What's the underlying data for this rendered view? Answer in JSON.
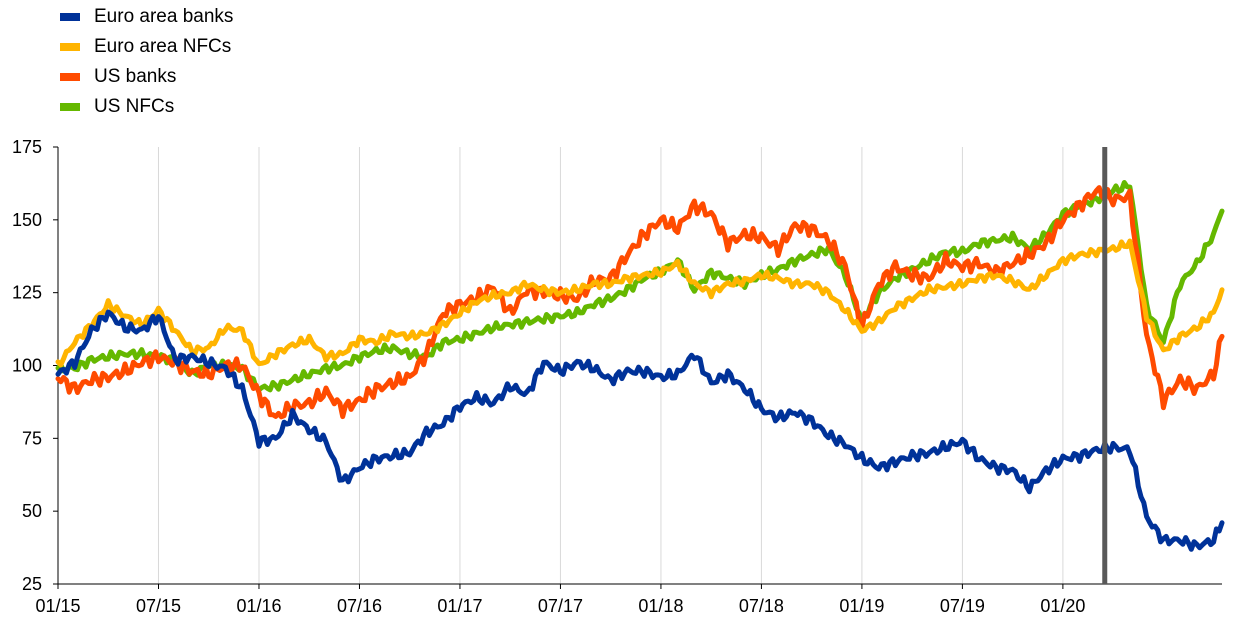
{
  "chart_data": {
    "type": "line",
    "title": "",
    "xlabel": "",
    "ylabel": "",
    "ylim": [
      25,
      175
    ],
    "y_ticks": [
      "175",
      "150",
      "125",
      "100",
      "75",
      "50",
      "25"
    ],
    "x_ticks": [
      "01/15",
      "07/15",
      "01/16",
      "07/16",
      "01/17",
      "07/17",
      "01/18",
      "07/18",
      "01/19",
      "07/19",
      "01/20"
    ],
    "x_unit": "month",
    "x_start": "01/15",
    "x_end": "07/20",
    "grid": "vertical",
    "legend_position": "top-left",
    "vertical_marker": "03/20",
    "series": [
      {
        "name": "Euro area banks",
        "color": "#003299",
        "points": [
          [
            0,
            97
          ],
          [
            1,
            101
          ],
          [
            2,
            112
          ],
          [
            3,
            118
          ],
          [
            4,
            113
          ],
          [
            5,
            112
          ],
          [
            6,
            117
          ],
          [
            7,
            102
          ],
          [
            8,
            103
          ],
          [
            9,
            101
          ],
          [
            10,
            99
          ],
          [
            11,
            92
          ],
          [
            12,
            74
          ],
          [
            13,
            75
          ],
          [
            14,
            83
          ],
          [
            15,
            78
          ],
          [
            16,
            74
          ],
          [
            17,
            60
          ],
          [
            18,
            65
          ],
          [
            19,
            68
          ],
          [
            20,
            69
          ],
          [
            21,
            70
          ],
          [
            22,
            77
          ],
          [
            23,
            80
          ],
          [
            24,
            86
          ],
          [
            25,
            89
          ],
          [
            26,
            87
          ],
          [
            27,
            93
          ],
          [
            28,
            90
          ],
          [
            29,
            101
          ],
          [
            30,
            98
          ],
          [
            31,
            101
          ],
          [
            32,
            99
          ],
          [
            33,
            95
          ],
          [
            34,
            98
          ],
          [
            35,
            98
          ],
          [
            36,
            96
          ],
          [
            37,
            97
          ],
          [
            38,
            104
          ],
          [
            39,
            94
          ],
          [
            40,
            97
          ],
          [
            41,
            92
          ],
          [
            42,
            85
          ],
          [
            43,
            82
          ],
          [
            44,
            84
          ],
          [
            45,
            81
          ],
          [
            46,
            76
          ],
          [
            47,
            73
          ],
          [
            48,
            68
          ],
          [
            49,
            65
          ],
          [
            50,
            67
          ],
          [
            51,
            69
          ],
          [
            52,
            70
          ],
          [
            53,
            72
          ],
          [
            54,
            74
          ],
          [
            55,
            68
          ],
          [
            56,
            65
          ],
          [
            57,
            64
          ],
          [
            58,
            58
          ],
          [
            59,
            64
          ],
          [
            60,
            68
          ],
          [
            61,
            69
          ],
          [
            62,
            71
          ],
          [
            63,
            72
          ],
          [
            64,
            71
          ],
          [
            65,
            48
          ],
          [
            66,
            40
          ],
          [
            67,
            40
          ],
          [
            68,
            38
          ],
          [
            69,
            40
          ],
          [
            69.5,
            46
          ]
        ]
      },
      {
        "name": "Euro area NFCs",
        "color": "#ffb400",
        "points": [
          [
            0,
            100
          ],
          [
            1,
            108
          ],
          [
            2,
            114
          ],
          [
            3,
            121
          ],
          [
            4,
            117
          ],
          [
            5,
            114
          ],
          [
            6,
            119
          ],
          [
            7,
            112
          ],
          [
            8,
            105
          ],
          [
            9,
            106
          ],
          [
            10,
            113
          ],
          [
            11,
            112
          ],
          [
            12,
            100
          ],
          [
            13,
            104
          ],
          [
            14,
            107
          ],
          [
            15,
            109
          ],
          [
            16,
            103
          ],
          [
            17,
            104
          ],
          [
            18,
            109
          ],
          [
            19,
            108
          ],
          [
            20,
            111
          ],
          [
            21,
            110
          ],
          [
            22,
            111
          ],
          [
            23,
            114
          ],
          [
            24,
            118
          ],
          [
            25,
            122
          ],
          [
            26,
            124
          ],
          [
            27,
            125
          ],
          [
            28,
            128
          ],
          [
            29,
            126
          ],
          [
            30,
            125
          ],
          [
            31,
            126
          ],
          [
            32,
            128
          ],
          [
            33,
            128
          ],
          [
            34,
            130
          ],
          [
            35,
            131
          ],
          [
            36,
            132
          ],
          [
            37,
            135
          ],
          [
            38,
            128
          ],
          [
            39,
            125
          ],
          [
            40,
            128
          ],
          [
            41,
            129
          ],
          [
            42,
            131
          ],
          [
            43,
            130
          ],
          [
            44,
            128
          ],
          [
            45,
            128
          ],
          [
            46,
            125
          ],
          [
            47,
            119
          ],
          [
            48,
            112
          ],
          [
            49,
            115
          ],
          [
            50,
            120
          ],
          [
            51,
            123
          ],
          [
            52,
            126
          ],
          [
            53,
            127
          ],
          [
            54,
            128
          ],
          [
            55,
            130
          ],
          [
            56,
            131
          ],
          [
            57,
            129
          ],
          [
            58,
            126
          ],
          [
            59,
            131
          ],
          [
            60,
            136
          ],
          [
            61,
            138
          ],
          [
            62,
            139
          ],
          [
            63,
            140
          ],
          [
            64,
            142
          ],
          [
            65,
            117
          ],
          [
            66,
            105
          ],
          [
            67,
            110
          ],
          [
            68,
            113
          ],
          [
            69,
            118
          ],
          [
            69.5,
            126
          ]
        ]
      },
      {
        "name": "US banks",
        "color": "#ff4b00",
        "points": [
          [
            0,
            96
          ],
          [
            1,
            92
          ],
          [
            2,
            95
          ],
          [
            3,
            96
          ],
          [
            4,
            98
          ],
          [
            5,
            101
          ],
          [
            6,
            103
          ],
          [
            7,
            101
          ],
          [
            8,
            98
          ],
          [
            9,
            97
          ],
          [
            10,
            100
          ],
          [
            11,
            100
          ],
          [
            12,
            90
          ],
          [
            13,
            82
          ],
          [
            14,
            86
          ],
          [
            15,
            87
          ],
          [
            16,
            91
          ],
          [
            17,
            85
          ],
          [
            18,
            88
          ],
          [
            19,
            92
          ],
          [
            20,
            94
          ],
          [
            21,
            96
          ],
          [
            22,
            104
          ],
          [
            23,
            118
          ],
          [
            24,
            121
          ],
          [
            25,
            123
          ],
          [
            26,
            127
          ],
          [
            27,
            118
          ],
          [
            28,
            126
          ],
          [
            29,
            125
          ],
          [
            30,
            124
          ],
          [
            31,
            123
          ],
          [
            32,
            129
          ],
          [
            33,
            130
          ],
          [
            34,
            138
          ],
          [
            35,
            145
          ],
          [
            36,
            150
          ],
          [
            37,
            147
          ],
          [
            38,
            155
          ],
          [
            39,
            152
          ],
          [
            40,
            142
          ],
          [
            41,
            145
          ],
          [
            42,
            144
          ],
          [
            43,
            140
          ],
          [
            44,
            148
          ],
          [
            45,
            147
          ],
          [
            46,
            143
          ],
          [
            47,
            134
          ],
          [
            48,
            113
          ],
          [
            49,
            128
          ],
          [
            50,
            134
          ],
          [
            51,
            131
          ],
          [
            52,
            130
          ],
          [
            53,
            136
          ],
          [
            54,
            134
          ],
          [
            55,
            135
          ],
          [
            56,
            132
          ],
          [
            57,
            135
          ],
          [
            58,
            138
          ],
          [
            59,
            142
          ],
          [
            60,
            150
          ],
          [
            61,
            155
          ],
          [
            62,
            160
          ],
          [
            63,
            157
          ],
          [
            64,
            158
          ],
          [
            65,
            110
          ],
          [
            66,
            88
          ],
          [
            67,
            95
          ],
          [
            68,
            92
          ],
          [
            69,
            97
          ],
          [
            69.5,
            110
          ]
        ]
      },
      {
        "name": "US NFCs",
        "color": "#65b800",
        "points": [
          [
            0,
            99
          ],
          [
            1,
            99
          ],
          [
            2,
            102
          ],
          [
            3,
            103
          ],
          [
            4,
            104
          ],
          [
            5,
            104
          ],
          [
            6,
            103
          ],
          [
            7,
            102
          ],
          [
            8,
            97
          ],
          [
            9,
            100
          ],
          [
            10,
            100
          ],
          [
            11,
            99
          ],
          [
            12,
            92
          ],
          [
            13,
            93
          ],
          [
            14,
            95
          ],
          [
            15,
            97
          ],
          [
            16,
            99
          ],
          [
            17,
            100
          ],
          [
            18,
            103
          ],
          [
            19,
            105
          ],
          [
            20,
            106
          ],
          [
            21,
            104
          ],
          [
            22,
            103
          ],
          [
            23,
            108
          ],
          [
            24,
            109
          ],
          [
            25,
            111
          ],
          [
            26,
            113
          ],
          [
            27,
            114
          ],
          [
            28,
            115
          ],
          [
            29,
            116
          ],
          [
            30,
            117
          ],
          [
            31,
            118
          ],
          [
            32,
            121
          ],
          [
            33,
            123
          ],
          [
            34,
            126
          ],
          [
            35,
            130
          ],
          [
            36,
            132
          ],
          [
            37,
            136
          ],
          [
            38,
            126
          ],
          [
            39,
            132
          ],
          [
            40,
            130
          ],
          [
            41,
            128
          ],
          [
            42,
            131
          ],
          [
            43,
            133
          ],
          [
            44,
            136
          ],
          [
            45,
            138
          ],
          [
            46,
            140
          ],
          [
            47,
            131
          ],
          [
            48,
            115
          ],
          [
            49,
            125
          ],
          [
            50,
            130
          ],
          [
            51,
            133
          ],
          [
            52,
            136
          ],
          [
            53,
            139
          ],
          [
            54,
            139
          ],
          [
            55,
            142
          ],
          [
            56,
            143
          ],
          [
            57,
            144
          ],
          [
            58,
            140
          ],
          [
            59,
            145
          ],
          [
            60,
            152
          ],
          [
            61,
            155
          ],
          [
            62,
            157
          ],
          [
            63,
            160
          ],
          [
            64,
            162
          ],
          [
            65,
            120
          ],
          [
            66,
            108
          ],
          [
            67,
            128
          ],
          [
            68,
            135
          ],
          [
            69,
            145
          ],
          [
            69.5,
            153
          ]
        ]
      }
    ]
  }
}
